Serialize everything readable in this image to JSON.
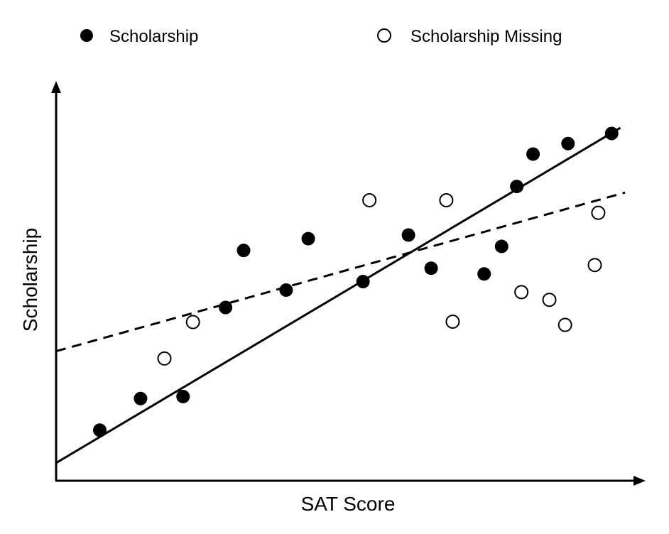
{
  "chart_data": {
    "type": "scatter",
    "xlabel": "SAT Score",
    "ylabel": "Scholarship",
    "xlim": [
      0,
      100
    ],
    "ylim": [
      0,
      100
    ],
    "legend_position": "top",
    "grid": false,
    "series": [
      {
        "name": "Scholarship",
        "marker": "filled-circle",
        "color": "#000000",
        "points": [
          [
            7.5,
            12.5
          ],
          [
            14.5,
            20.3
          ],
          [
            21.8,
            20.8
          ],
          [
            29.1,
            42.8
          ],
          [
            32.2,
            56.9
          ],
          [
            39.5,
            47.1
          ],
          [
            43.3,
            59.8
          ],
          [
            52.7,
            49.2
          ],
          [
            60.5,
            60.7
          ],
          [
            64.4,
            52.5
          ],
          [
            73.5,
            51.1
          ],
          [
            76.5,
            57.9
          ],
          [
            79.1,
            72.7
          ],
          [
            81.9,
            80.7
          ],
          [
            87.9,
            83.3
          ],
          [
            95.4,
            85.8
          ]
        ]
      },
      {
        "name": "Scholarship Missing",
        "marker": "open-circle",
        "color": "#000000",
        "points": [
          [
            18.6,
            30.2
          ],
          [
            23.5,
            39.2
          ],
          [
            53.8,
            69.3
          ],
          [
            68.1,
            39.3
          ],
          [
            67.0,
            69.3
          ],
          [
            79.9,
            46.6
          ],
          [
            84.7,
            44.7
          ],
          [
            87.4,
            38.5
          ],
          [
            92.5,
            53.3
          ],
          [
            93.1,
            66.2
          ]
        ]
      }
    ],
    "lines": [
      {
        "name": "solid-fit",
        "style": "solid",
        "x": [
          0,
          96.9
        ],
        "y": [
          4.4,
          87.2
        ]
      },
      {
        "name": "dashed-fit",
        "style": "dashed",
        "x": [
          0,
          97.7
        ],
        "y": [
          32.0,
          71.2
        ]
      }
    ],
    "legend": [
      {
        "label": "Scholarship",
        "marker": "filled-circle"
      },
      {
        "label": "Scholarship Missing",
        "marker": "open-circle"
      }
    ]
  }
}
